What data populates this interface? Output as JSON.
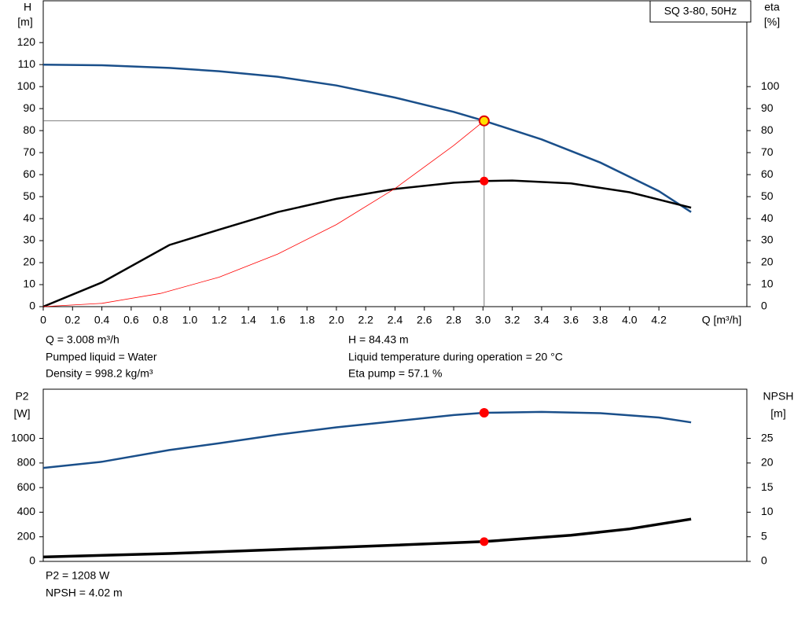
{
  "chart_data": [
    {
      "type": "line",
      "title": "SQ 3-80, 50Hz",
      "xlabel": "Q [m³/h]",
      "ylabel": [
        "H",
        "[m]"
      ],
      "y2label": [
        "eta",
        "[%]"
      ],
      "xlim": [
        0,
        4.8
      ],
      "ylim": [
        0,
        139
      ],
      "y2lim": [
        0,
        139
      ],
      "xticks": [
        0,
        0.2,
        0.4,
        0.6,
        0.8,
        {
          "value": 1,
          "label": "1.0"
        },
        1.2,
        1.4,
        1.6,
        1.8,
        {
          "value": 2,
          "label": "2.0"
        },
        2.2,
        2.4,
        2.6,
        2.8,
        {
          "value": 3,
          "label": "3.0"
        },
        3.2,
        3.4,
        3.6,
        3.8,
        {
          "value": 4,
          "label": "4.0"
        },
        4.2
      ],
      "yticks": [
        0,
        10,
        20,
        30,
        40,
        50,
        60,
        70,
        80,
        90,
        100,
        110,
        120
      ],
      "y2ticks": [
        0,
        10,
        20,
        30,
        40,
        50,
        60,
        70,
        80,
        90,
        100
      ],
      "grid": false,
      "series": [
        {
          "color": "#1a4f8a",
          "x": [
            0,
            0.4,
            0.86,
            1.2,
            1.6,
            2.0,
            2.4,
            2.8,
            3.008,
            3.4,
            3.8,
            4.2,
            4.42
          ],
          "values": [
            110,
            109.7,
            108.5,
            107,
            104.5,
            100.5,
            95,
            88.5,
            84.43,
            76,
            65.5,
            52.5,
            43
          ]
        },
        {
          "color": "#000000",
          "axis": "y2",
          "x": [
            0,
            0.4,
            0.86,
            1.2,
            1.6,
            2.0,
            2.4,
            2.8,
            3.008,
            3.2,
            3.6,
            4.0,
            4.42
          ],
          "values": [
            0,
            11,
            28,
            35,
            43,
            49,
            53.5,
            56.3,
            57.1,
            57.3,
            56,
            52,
            45
          ]
        },
        {
          "color": "#ff0000",
          "x": [
            0,
            0.4,
            0.8,
            1.2,
            1.6,
            2.0,
            2.4,
            2.8,
            3.008
          ],
          "values": [
            0,
            1.5,
            6,
            13.4,
            23.9,
            37.3,
            53.7,
            73.2,
            84.43
          ]
        }
      ],
      "operating_point": {
        "x": 3.008,
        "y": 84.43,
        "y2": 57.1
      },
      "annotations": [
        "Q = 3.008 m³/h",
        "Pumped liquid = Water",
        "Density = 998.2 kg/m³",
        "H = 84.43 m",
        "Liquid temperature during operation = 20 °C",
        "Eta pump = 57.1 %"
      ]
    },
    {
      "type": "line",
      "ylabel": [
        "P2",
        "[W]"
      ],
      "y2label": [
        "NPSH",
        "[m]"
      ],
      "xlim": [
        0,
        4.8
      ],
      "ylim": [
        0,
        1400
      ],
      "y2lim": [
        0,
        35
      ],
      "yticks": [
        0,
        200,
        400,
        600,
        800,
        1000
      ],
      "y2ticks": [
        0,
        5,
        10,
        15,
        20,
        25
      ],
      "grid": false,
      "series": [
        {
          "color": "#1a4f8a",
          "x": [
            0,
            0.4,
            0.86,
            1.2,
            1.6,
            2.0,
            2.4,
            2.8,
            3.008,
            3.4,
            3.8,
            4.2,
            4.42
          ],
          "values": [
            760,
            810,
            905,
            960,
            1030,
            1090,
            1140,
            1190,
            1208,
            1215,
            1205,
            1170,
            1130
          ]
        },
        {
          "color": "#000000",
          "axis": "y2",
          "x": [
            0,
            0.86,
            1.6,
            2.4,
            3.008,
            3.6,
            4.0,
            4.42
          ],
          "values": [
            0.9,
            1.6,
            2.4,
            3.3,
            4.02,
            5.3,
            6.6,
            8.6
          ]
        }
      ],
      "operating_point": {
        "x": 3.008,
        "y": 1208,
        "y2": 4.02
      },
      "annotations": [
        "P2 = 1208 W",
        "NPSH = 4.02 m"
      ]
    }
  ]
}
